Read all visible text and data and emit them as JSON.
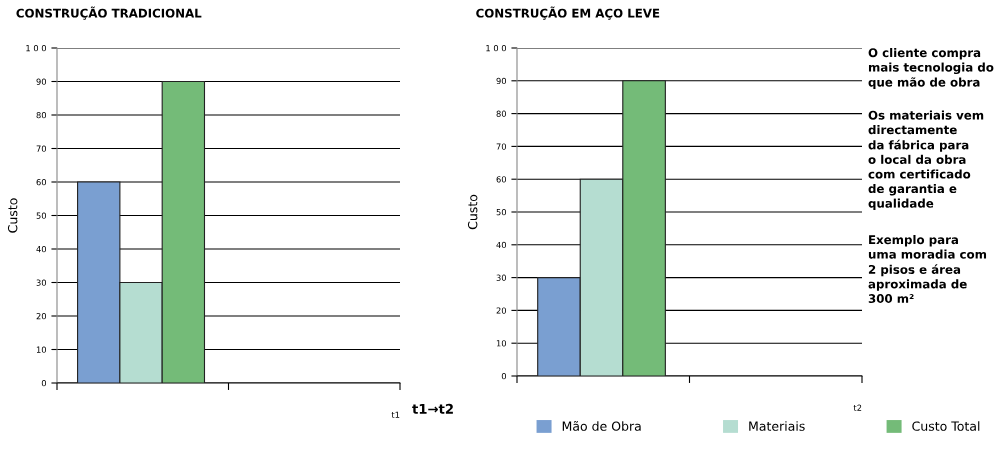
{
  "chart_data": [
    {
      "type": "bar",
      "title": "CONSTRUÇÃO TRADICIONAL",
      "ylabel": "Custo",
      "xlabel": "t1",
      "categories": [
        null,
        null
      ],
      "series": [
        {
          "color": "#7a9fd1",
          "values": [
            60,
            null
          ]
        },
        {
          "color": "#b5ddd1",
          "values": [
            30,
            null
          ]
        },
        {
          "color": "#74bb78",
          "values": [
            90,
            null
          ]
        }
      ],
      "ylim": [
        0,
        100
      ],
      "yticks": [
        0,
        10,
        20,
        30,
        40,
        50,
        60,
        70,
        80,
        90,
        {
          "value": 100,
          "label": "1 0 0"
        }
      ],
      "grid": "y",
      "annotations": [
        "t1→t2"
      ]
    },
    {
      "type": "bar",
      "title": "CONSTRUÇÃO EM AÇO LEVE",
      "ylabel": "Custo",
      "xlabel": "t2",
      "categories": [
        null,
        null
      ],
      "series": [
        {
          "name": "Mão de Obra",
          "color": "#7a9fd1",
          "values": [
            30,
            null
          ]
        },
        {
          "name": "Materiais",
          "color": "#b5ddd1",
          "values": [
            60,
            null
          ]
        },
        {
          "name": "Custo Total",
          "color": "#74bb78",
          "values": [
            90,
            null
          ]
        }
      ],
      "ylim": [
        0,
        100
      ],
      "yticks": [
        0,
        10,
        20,
        30,
        40,
        50,
        60,
        70,
        80,
        90,
        {
          "value": 100,
          "label": "1 0 0"
        }
      ],
      "grid": "y",
      "legend": "bottom",
      "annotations": [
        "O cliente compra\nmais tecnologia do\nque mão de obra",
        "Os materiais vem\ndirectamente\nda fábrica para\no local da obra\ncom certificado\nde garantia e\nqualidade",
        "Exemplo para\numa moradia com\n2 pisos e área\naproximada de\n300 m²"
      ]
    }
  ]
}
